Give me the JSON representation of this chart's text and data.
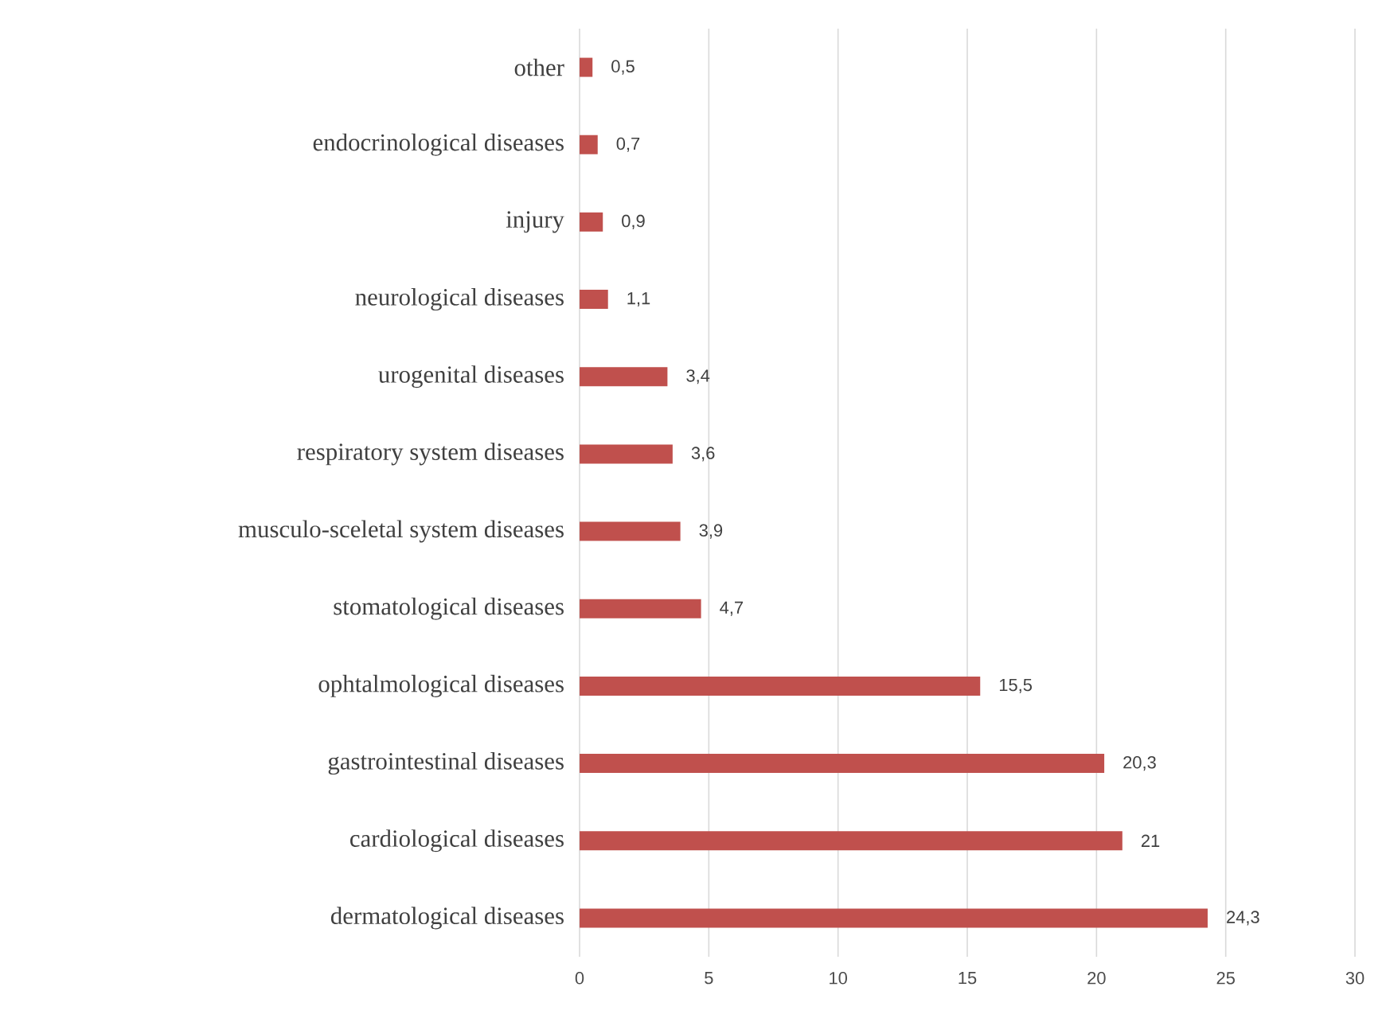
{
  "chart_data": {
    "type": "bar",
    "orientation": "horizontal",
    "color": "#c0504d",
    "categories": [
      "other",
      "endocrinological diseases",
      "injury",
      "neurological diseases",
      "urogenital diseases",
      "respiratory system  diseases",
      "musculo-sceletal system diseases",
      "stomatological diseases",
      "ophtalmological diseases",
      "gastrointestinal diseases",
      "cardiological diseases",
      "dermatological diseases"
    ],
    "values": [
      0.5,
      0.7,
      0.9,
      1.1,
      3.4,
      3.6,
      3.9,
      4.7,
      15.5,
      20.3,
      21,
      24.3
    ],
    "value_labels": [
      "0,5",
      "0,7",
      "0,9",
      "1,1",
      "3,4",
      "3,6",
      "3,9",
      "4,7",
      "15,5",
      "20,3",
      "21",
      "24,3"
    ],
    "xlim": [
      0,
      30
    ],
    "xticks": [
      0,
      5,
      10,
      15,
      20,
      25,
      30
    ],
    "grid": "x"
  }
}
